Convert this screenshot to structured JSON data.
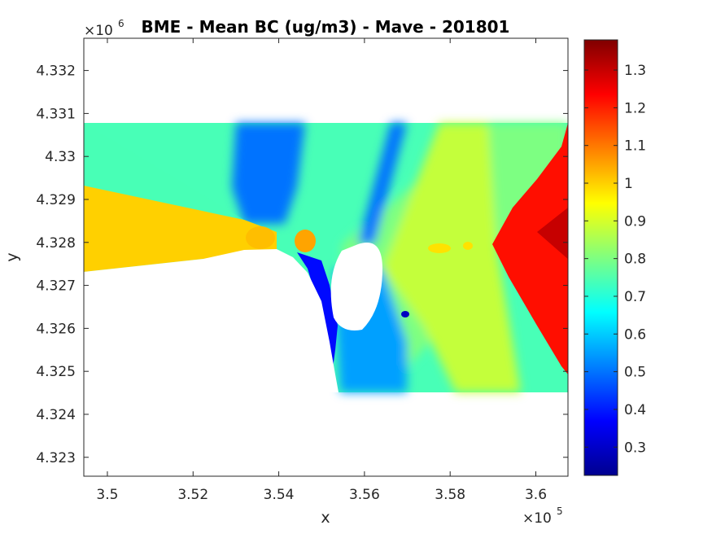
{
  "chart_data": {
    "type": "heatmap",
    "title": "BME - Mean BC (ug/m3) -  Mave - 201801",
    "xlabel": "x",
    "ylabel": "y",
    "x_multiplier": "×10",
    "x_multiplier_exp": "5",
    "y_multiplier": "×10",
    "y_multiplier_exp": "6",
    "xlim": [
      349.45,
      360.75
    ],
    "ylim": [
      4.32256,
      4.33275
    ],
    "x_ticks": [
      {
        "value": 350,
        "label": "3.5"
      },
      {
        "value": 352,
        "label": "3.52"
      },
      {
        "value": 354,
        "label": "3.54"
      },
      {
        "value": 356,
        "label": "3.56"
      },
      {
        "value": 358,
        "label": "3.58"
      },
      {
        "value": 360,
        "label": "3.6"
      }
    ],
    "y_ticks": [
      {
        "value": 4.323,
        "label": "4.323"
      },
      {
        "value": 4.324,
        "label": "4.324"
      },
      {
        "value": 4.325,
        "label": "4.325"
      },
      {
        "value": 4.326,
        "label": "4.326"
      },
      {
        "value": 4.327,
        "label": "4.327"
      },
      {
        "value": 4.328,
        "label": "4.328"
      },
      {
        "value": 4.329,
        "label": "4.329"
      },
      {
        "value": 4.33,
        "label": "4.33"
      },
      {
        "value": 4.331,
        "label": "4.331"
      },
      {
        "value": 4.332,
        "label": "4.332"
      }
    ],
    "colorbar": {
      "colormap": "jet",
      "range": [
        0.225,
        1.38
      ],
      "ticks": [
        {
          "value": 0.3,
          "label": "0.3"
        },
        {
          "value": 0.4,
          "label": "0.4"
        },
        {
          "value": 0.5,
          "label": "0.5"
        },
        {
          "value": 0.6,
          "label": "0.6"
        },
        {
          "value": 0.7,
          "label": "0.7"
        },
        {
          "value": 0.8,
          "label": "0.8"
        },
        {
          "value": 0.9,
          "label": "0.9"
        },
        {
          "value": 1.0,
          "label": "1"
        },
        {
          "value": 1.1,
          "label": "1.1"
        },
        {
          "value": 1.2,
          "label": "1.2"
        },
        {
          "value": 1.3,
          "label": "1.3"
        }
      ]
    },
    "data_extent": {
      "x": [
        349.45,
        360.75
      ],
      "y": [
        4.32449,
        4.33082
      ]
    },
    "regions": [
      {
        "name": "background",
        "value": 0.74
      },
      {
        "name": "west-orange-wedge",
        "value": 1.0
      },
      {
        "name": "east-red-front",
        "value": 1.22
      },
      {
        "name": "east-dark-red-core",
        "value": 1.3
      },
      {
        "name": "north-blue-plume",
        "value": 0.5
      },
      {
        "name": "south-blue-band",
        "value": 0.55
      },
      {
        "name": "channel-deep-blue",
        "value": 0.38
      },
      {
        "name": "east-yellow-sector",
        "value": 0.88
      },
      {
        "name": "centre-green-sector",
        "value": 0.8
      },
      {
        "name": "hotspot-orange-1",
        "value": 1.02
      },
      {
        "name": "hotspot-orange-2",
        "value": 1.05
      },
      {
        "name": "hotspot-orange-3",
        "value": 0.98
      },
      {
        "name": "hotspot-blue",
        "value": 0.3
      }
    ]
  }
}
